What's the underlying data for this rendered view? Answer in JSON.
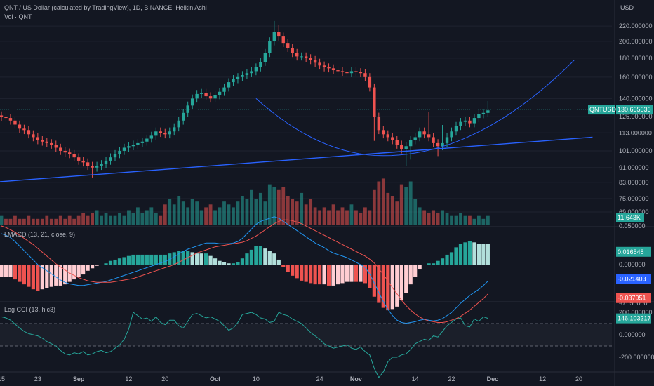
{
  "header": {
    "title": "QNT / US Dollar (calculated by TradingView), 1D, BINANCE, Heikin Ashi",
    "volume_label": "Vol · QNT",
    "currency": "USD"
  },
  "panes": {
    "lmacd_label": "LMACD (13, 21, close, 9)",
    "cci_label": "Log CCI (13, hlc3)"
  },
  "colors": {
    "background": "#131722",
    "up": "#26a69a",
    "down": "#ef5350",
    "trendline": "#2962ff",
    "macd_line": "#2196f3",
    "signal_line": "#ef5350",
    "cci_line": "#26a69a",
    "price_tag": "#26a69a",
    "grid": "#1f2330"
  },
  "icons": {
    "drawing_1": "trendline",
    "drawing_2": "arc"
  },
  "chart_data": [
    {
      "type": "candlestick",
      "ohlc": "generated",
      "price_ticks": [
        "220.000000",
        "200.000000",
        "180.000000",
        "160.000000",
        "140.000000",
        "125.000000",
        "113.000000",
        "101.000000",
        "91.000000",
        "83.000000",
        "75.000000",
        "69.000000"
      ],
      "price_ticks_values": [
        220,
        200,
        180,
        160,
        140,
        125,
        113,
        101,
        91,
        83,
        75,
        69
      ],
      "last_price": {
        "label": "QNTUSD",
        "value": "130.665636",
        "v": 130.67
      },
      "volume_tag": "11.643K",
      "x_ticks": [
        {
          "label": "15",
          "day": 0
        },
        {
          "label": "23",
          "day": 8
        },
        {
          "label": "Sep",
          "day": 17
        },
        {
          "label": "12",
          "day": 28
        },
        {
          "label": "20",
          "day": 36
        },
        {
          "label": "Oct",
          "day": 47
        },
        {
          "label": "10",
          "day": 56
        },
        {
          "label": "24",
          "day": 70
        },
        {
          "label": "Nov",
          "day": 78
        },
        {
          "label": "14",
          "day": 91
        },
        {
          "label": "22",
          "day": 99
        },
        {
          "label": "Dec",
          "day": 108
        },
        {
          "label": "12",
          "day": 119
        },
        {
          "label": "20",
          "day": 127
        }
      ],
      "closes": [
        125,
        124,
        122,
        119,
        116,
        115,
        112,
        110,
        108,
        107,
        106,
        105,
        103,
        101,
        100,
        99,
        97,
        95,
        94,
        92,
        91,
        92,
        93,
        95,
        97,
        99,
        101,
        103,
        104,
        105,
        106,
        107,
        109,
        111,
        114,
        113,
        112,
        114,
        117,
        122,
        128,
        134,
        140,
        144,
        145,
        142,
        140,
        143,
        146,
        150,
        155,
        158,
        160,
        162,
        164,
        166,
        170,
        176,
        186,
        200,
        212,
        206,
        198,
        192,
        186,
        182,
        182,
        180,
        178,
        175,
        172,
        170,
        169,
        167,
        166,
        165,
        164,
        166,
        165,
        164,
        160,
        150,
        125,
        115,
        112,
        110,
        108,
        105,
        102,
        104,
        108,
        110,
        114,
        112,
        110,
        106,
        104,
        106,
        110,
        114,
        118,
        121,
        122,
        120,
        124,
        127,
        128,
        130
      ],
      "highs_extra": {
        "60": 227,
        "61": 222,
        "94": 15,
        "97": 12,
        "107": 6
      },
      "lows_extra": {
        "20": 6,
        "82": 14,
        "89": 10,
        "90": 8,
        "96": 6
      },
      "volume": [
        3,
        2,
        2,
        3,
        2,
        2,
        3,
        2,
        2,
        2,
        3,
        2,
        2,
        3,
        2,
        3,
        2,
        3,
        4,
        3,
        4,
        5,
        3,
        4,
        3,
        3,
        4,
        3,
        5,
        4,
        6,
        4,
        5,
        6,
        4,
        3,
        7,
        9,
        7,
        10,
        8,
        6,
        9,
        8,
        5,
        6,
        7,
        5,
        6,
        8,
        7,
        6,
        8,
        10,
        9,
        12,
        9,
        11,
        8,
        14,
        13,
        12,
        13,
        10,
        9,
        8,
        11,
        7,
        9,
        6,
        5,
        6,
        5,
        7,
        5,
        6,
        5,
        7,
        5,
        4,
        6,
        5,
        12,
        15,
        16,
        11,
        10,
        8,
        14,
        13,
        15,
        9,
        6,
        5,
        4,
        5,
        4,
        5,
        4,
        3,
        3,
        4,
        3,
        3,
        2,
        3,
        2,
        3
      ],
      "trendline": {
        "from": {
          "day": -2,
          "price": 83
        },
        "to": {
          "day": 130,
          "price": 110
        }
      },
      "arc": {
        "start": {
          "day": 56,
          "price": 140
        },
        "bottom": {
          "day": 84,
          "price": 98
        },
        "end": {
          "day": 126,
          "price": 178
        }
      }
    },
    {
      "type": "histogram+line",
      "name": "LMACD",
      "ticks": [
        "0.050000",
        "0.000000",
        "-0.050000"
      ],
      "ticks_values": [
        0.05,
        0,
        -0.05
      ],
      "tags": [
        {
          "value": "0.016548",
          "v": 0.016548,
          "color": "#26a69a"
        },
        {
          "value": "-0.021403",
          "v": -0.021403,
          "color": "#2962ff"
        },
        {
          "value": "-0.037951",
          "v": -0.037951,
          "color": "#ef5350"
        }
      ],
      "macd": [
        0.04,
        0.038,
        0.035,
        0.03,
        0.024,
        0.018,
        0.012,
        0.006,
        0.0,
        -0.004,
        -0.008,
        -0.012,
        -0.016,
        -0.02,
        -0.023,
        -0.025,
        -0.026,
        -0.027,
        -0.027,
        -0.026,
        -0.025,
        -0.024,
        -0.023,
        -0.022,
        -0.02,
        -0.018,
        -0.016,
        -0.014,
        -0.012,
        -0.01,
        -0.008,
        -0.006,
        -0.004,
        -0.002,
        0.0,
        0.002,
        0.004,
        0.007,
        0.01,
        0.014,
        0.017,
        0.02,
        0.022,
        0.024,
        0.026,
        0.028,
        0.028,
        0.028,
        0.027,
        0.027,
        0.027,
        0.028,
        0.03,
        0.034,
        0.04,
        0.046,
        0.052,
        0.056,
        0.058,
        0.06,
        0.062,
        0.06,
        0.056,
        0.052,
        0.048,
        0.044,
        0.04,
        0.036,
        0.032,
        0.028,
        0.025,
        0.022,
        0.018,
        0.015,
        0.013,
        0.011,
        0.009,
        0.006,
        0.003,
        0.0,
        -0.004,
        -0.012,
        -0.024,
        -0.036,
        -0.048,
        -0.058,
        -0.066,
        -0.072,
        -0.075,
        -0.076,
        -0.075,
        -0.074,
        -0.072,
        -0.071,
        -0.072,
        -0.073,
        -0.072,
        -0.07,
        -0.066,
        -0.062,
        -0.056,
        -0.05,
        -0.045,
        -0.04,
        -0.036,
        -0.032,
        -0.027,
        -0.0214
      ],
      "signal": [
        0.05,
        0.048,
        0.045,
        0.042,
        0.038,
        0.034,
        0.03,
        0.026,
        0.021,
        0.016,
        0.011,
        0.006,
        0.001,
        -0.003,
        -0.007,
        -0.011,
        -0.014,
        -0.017,
        -0.019,
        -0.021,
        -0.022,
        -0.023,
        -0.023,
        -0.023,
        -0.023,
        -0.022,
        -0.021,
        -0.02,
        -0.019,
        -0.018,
        -0.016,
        -0.014,
        -0.012,
        -0.01,
        -0.008,
        -0.006,
        -0.004,
        -0.002,
        0.0,
        0.003,
        0.006,
        0.009,
        0.012,
        0.015,
        0.017,
        0.019,
        0.021,
        0.023,
        0.024,
        0.025,
        0.026,
        0.027,
        0.028,
        0.029,
        0.031,
        0.034,
        0.037,
        0.041,
        0.045,
        0.049,
        0.053,
        0.056,
        0.058,
        0.058,
        0.057,
        0.055,
        0.053,
        0.05,
        0.047,
        0.044,
        0.041,
        0.038,
        0.035,
        0.032,
        0.029,
        0.026,
        0.023,
        0.02,
        0.017,
        0.014,
        0.011,
        0.007,
        0.002,
        -0.005,
        -0.013,
        -0.021,
        -0.03,
        -0.038,
        -0.046,
        -0.053,
        -0.059,
        -0.064,
        -0.068,
        -0.071,
        -0.073,
        -0.074,
        -0.075,
        -0.075,
        -0.074,
        -0.072,
        -0.07,
        -0.067,
        -0.063,
        -0.059,
        -0.054,
        -0.049,
        -0.044,
        -0.038
      ]
    },
    {
      "type": "line",
      "name": "Log CCI",
      "ticks": [
        "200.000000",
        "0.000000",
        "-200.000000"
      ],
      "ticks_values": [
        200,
        0,
        -200
      ],
      "tag": {
        "value": "146.103217",
        "v": 146.1
      },
      "dashed_levels": [
        100,
        -100
      ],
      "values": [
        160,
        150,
        130,
        95,
        60,
        30,
        10,
        0,
        -10,
        -30,
        -60,
        -80,
        -100,
        -140,
        -170,
        -180,
        -160,
        -170,
        -150,
        -180,
        -170,
        -150,
        -140,
        -160,
        -150,
        -120,
        -90,
        -40,
        50,
        200,
        170,
        140,
        150,
        120,
        160,
        110,
        90,
        130,
        130,
        80,
        60,
        120,
        180,
        190,
        170,
        150,
        160,
        140,
        120,
        80,
        40,
        60,
        110,
        180,
        190,
        200,
        180,
        150,
        140,
        110,
        120,
        200,
        180,
        170,
        140,
        120,
        100,
        60,
        20,
        -10,
        -40,
        -80,
        -100,
        -120,
        -110,
        -100,
        -90,
        -120,
        -130,
        -110,
        -150,
        -180,
        -300,
        -380,
        -330,
        -240,
        -200,
        -200,
        -180,
        -170,
        -130,
        -80,
        -60,
        -40,
        -50,
        -10,
        -20,
        30,
        80,
        110,
        140,
        150,
        80,
        70,
        140,
        120,
        160,
        146
      ]
    }
  ]
}
